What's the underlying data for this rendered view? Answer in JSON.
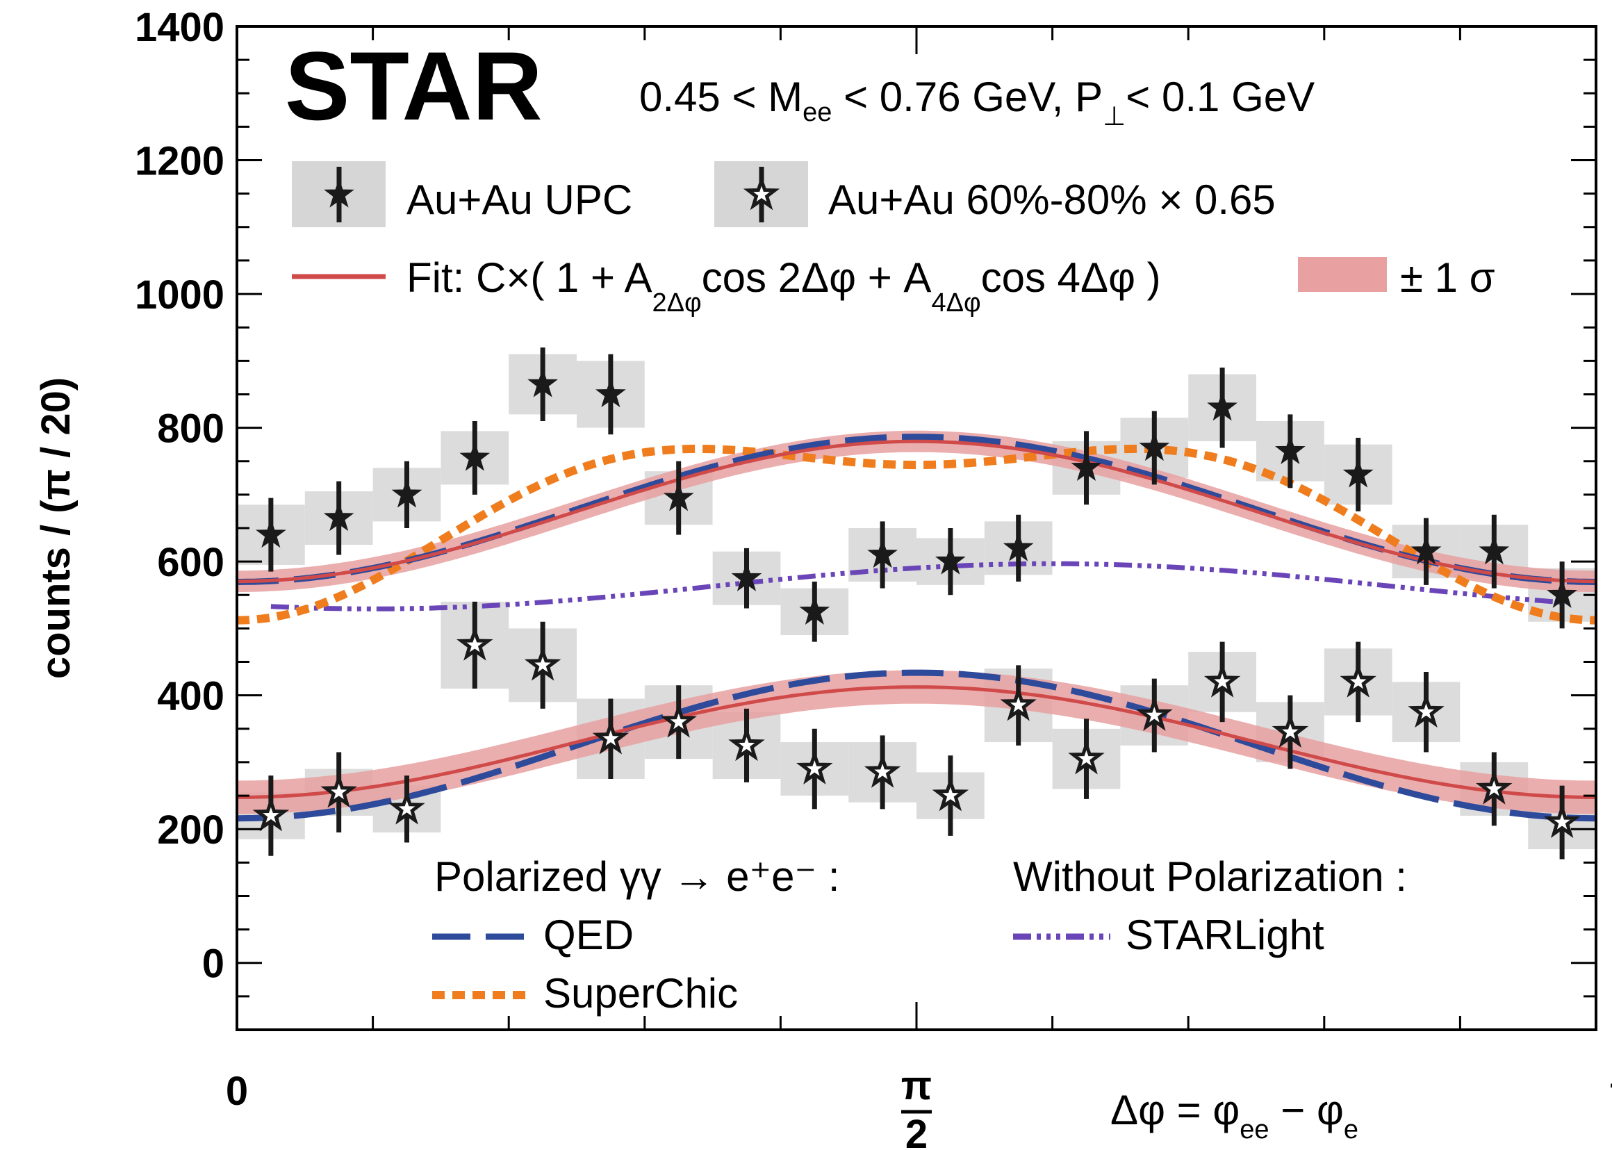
{
  "chart_data": {
    "type": "scatter",
    "experiment_label": "STAR",
    "cuts_label": {
      "part1": "0.45 < M",
      "sub1": "ee",
      "part2": " < 0.76 GeV, P",
      "sub2": "⊥",
      "part3": "< 0.1 GeV"
    },
    "xlabel": {
      "lhs": "Δφ = φ",
      "sub1": "ee",
      "mid": " − φ",
      "sub2": "e"
    },
    "ylabel": "counts  / (π / 20)",
    "x_tick_labels": [
      {
        "x": 0,
        "text": "0"
      },
      {
        "x": 1.5708,
        "text": "π",
        "denominator": "2"
      },
      {
        "x": 3.1416,
        "text": "π"
      }
    ],
    "xlim": [
      0,
      3.1416
    ],
    "ylim": [
      -100,
      1400
    ],
    "y_ticks": [
      0,
      200,
      400,
      600,
      800,
      1000,
      1200,
      1400
    ],
    "x_minor_tick_step": 0.31416,
    "y_minor_tick_step": 50,
    "grid": false,
    "series": [
      {
        "name": "Au+Au UPC",
        "marker": "filled-star",
        "color": "#1a1a1a",
        "x": [
          0.0785,
          0.2356,
          0.3927,
          0.5498,
          0.7069,
          0.8639,
          1.021,
          1.1781,
          1.3352,
          1.4923,
          1.6493,
          1.8064,
          1.9635,
          2.1206,
          2.2777,
          2.4347,
          2.5918,
          2.7489,
          2.906,
          3.0631
        ],
        "y": [
          640,
          665,
          700,
          755,
          865,
          850,
          695,
          575,
          525,
          610,
          600,
          620,
          740,
          770,
          830,
          765,
          730,
          615,
          615,
          550
        ],
        "yerr": [
          55,
          55,
          50,
          55,
          55,
          60,
          55,
          45,
          45,
          50,
          50,
          50,
          55,
          55,
          60,
          55,
          55,
          50,
          55,
          50
        ],
        "sys": [
          45,
          40,
          40,
          40,
          45,
          50,
          40,
          40,
          35,
          40,
          35,
          40,
          40,
          45,
          50,
          45,
          45,
          40,
          40,
          40
        ]
      },
      {
        "name": "Au+Au 60%-80% × 0.65",
        "marker": "open-star",
        "color": "#1a1a1a",
        "x": [
          0.0785,
          0.2356,
          0.3927,
          0.5498,
          0.7069,
          0.8639,
          1.021,
          1.1781,
          1.3352,
          1.4923,
          1.6493,
          1.8064,
          1.9635,
          2.1206,
          2.2777,
          2.4347,
          2.5918,
          2.7489,
          2.906,
          3.0631
        ],
        "y": [
          220,
          255,
          230,
          475,
          445,
          335,
          360,
          325,
          290,
          285,
          250,
          385,
          305,
          370,
          420,
          345,
          420,
          375,
          260,
          210
        ],
        "yerr": [
          60,
          60,
          50,
          65,
          65,
          60,
          55,
          55,
          60,
          55,
          60,
          60,
          60,
          55,
          60,
          55,
          60,
          60,
          55,
          55
        ],
        "sys": [
          35,
          35,
          35,
          65,
          55,
          60,
          55,
          50,
          40,
          45,
          35,
          55,
          45,
          45,
          45,
          45,
          50,
          45,
          40,
          40
        ]
      }
    ],
    "curves": [
      {
        "name": "QED",
        "group": "upper",
        "style": "dashed",
        "color": "#2e4a9a",
        "C": 678,
        "A2": -0.16,
        "A4": 0.0
      },
      {
        "name": "Fit: C×( 1 + A2Δφcos 2Δφ + A4Δφcos 4Δφ )",
        "group": "upper",
        "style": "solid",
        "color": "#d04a4a",
        "C": 675,
        "A2": -0.155,
        "A4": 0.0,
        "band": 16
      },
      {
        "name": "SuperChic",
        "group": "upper",
        "style": "dotted",
        "color": "#ef7d1e",
        "C": 683,
        "A2": -0.17,
        "A4": -0.08
      },
      {
        "name": "STARLight",
        "group": "upper",
        "style": "dashdot",
        "color": "#6a45b8",
        "C": 563,
        "A2": -0.06,
        "A4": 0.0,
        "phase_shift": 0.31416
      },
      {
        "name": "QED",
        "group": "lower",
        "style": "dashed",
        "color": "#2e4a9a",
        "C": 325,
        "A2": -0.335,
        "A4": 0.0
      },
      {
        "name": "Fit: C×( 1 + A2Δφcos 2Δφ + A4Δφcos 4Δφ )",
        "group": "lower",
        "style": "solid",
        "color": "#d04a4a",
        "C": 330,
        "A2": -0.25,
        "A4": 0.0,
        "band": 25
      }
    ],
    "legend": {
      "upc": "Au+Au UPC",
      "peripheral": "Au+Au 60%-80% × 0.65",
      "fit": {
        "p1": "Fit: C×( 1 + A",
        "s1": "2Δφ",
        "p2": "cos 2Δφ + A",
        "s2": "4Δφ",
        "p3": "cos 4Δφ )"
      },
      "band": "± 1 σ",
      "polarized_header": "Polarized γγ → e⁺e⁻ :",
      "qed": "QED",
      "superchic": "SuperChic",
      "unpolarized_header": "Without Polarization :",
      "starlight": "STARLight"
    },
    "colors": {
      "fit": "#d04a4a",
      "band": "#e8a0a0",
      "qed": "#2e4a9a",
      "superchic": "#ef7d1e",
      "starlight": "#6a45b8",
      "sys_box": "#d6d6d6"
    }
  }
}
